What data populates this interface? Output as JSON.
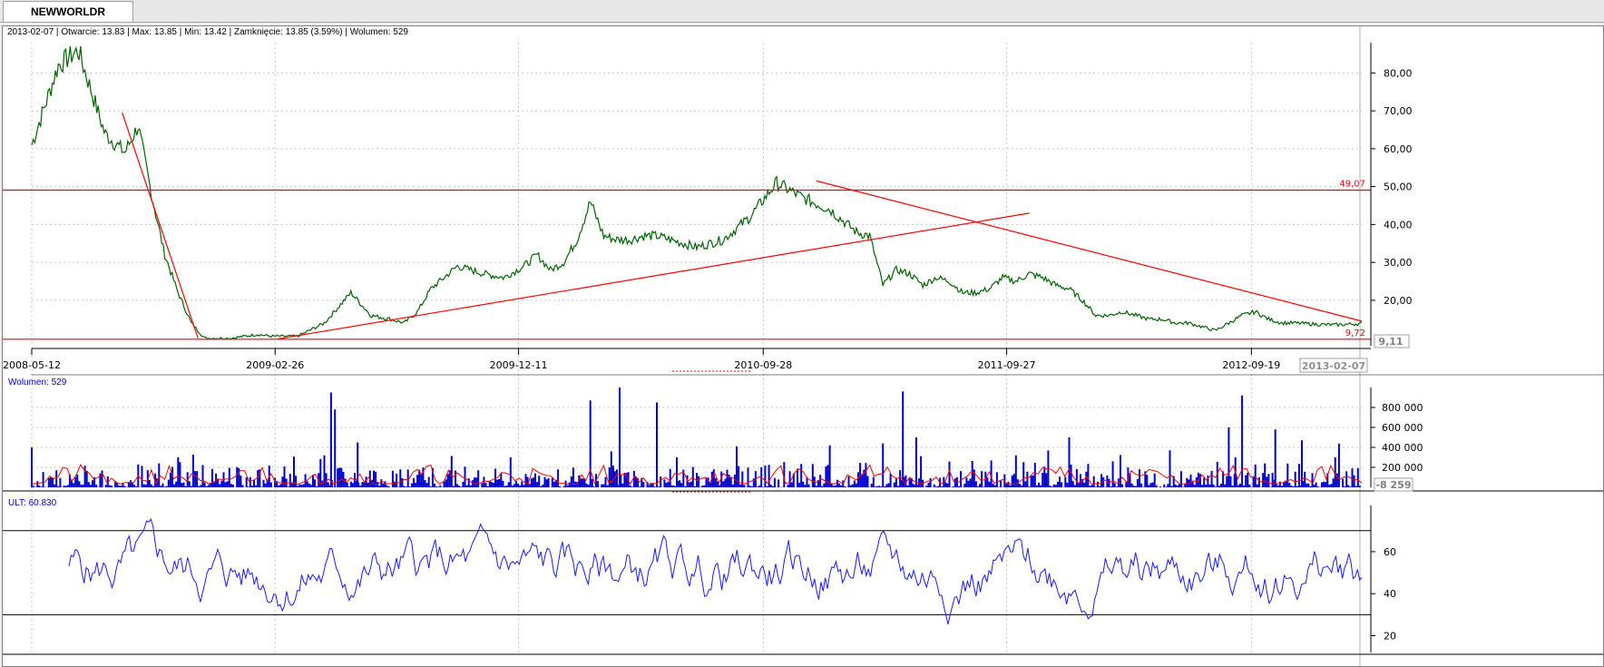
{
  "tab": {
    "label": "NEWWORLDR"
  },
  "info": {
    "date": "2013-02-07",
    "open": "Otwarcie: 13.83",
    "max": "Max: 13.85",
    "min": "Min: 13.42",
    "close": "Zamknięcie: 13.85 (3.59%)",
    "volume": "Wolumen: 529"
  },
  "colors": {
    "price": "#006400",
    "trend": "#ff0000",
    "volume": "#0000cc",
    "volume_ma": "#ff0000",
    "ult": "#1a1aff",
    "grid": "#c8c8c8",
    "axis": "#000000"
  },
  "chart_data": [
    {
      "type": "line",
      "name": "price",
      "x_ticks": [
        "2008-05-12",
        "2009-02-26",
        "2009-12-11",
        "2010-09-28",
        "2011-09-27",
        "2012-09-19"
      ],
      "y_ticks": [
        "80,00",
        "70,00",
        "60,00",
        "50,00",
        "40,00",
        "30,00",
        "20,00"
      ],
      "ylim": [
        8,
        88
      ],
      "last_date": "2013-02-07",
      "x": [
        0,
        0.02,
        0.035,
        0.045,
        0.055,
        0.07,
        0.08,
        0.09,
        0.1,
        0.11,
        0.12,
        0.13,
        0.14,
        0.15,
        0.16,
        0.17,
        0.18,
        0.2,
        0.22,
        0.24,
        0.255,
        0.27,
        0.28,
        0.29,
        0.3,
        0.31,
        0.32,
        0.33,
        0.34,
        0.355,
        0.37,
        0.38,
        0.39,
        0.4,
        0.41,
        0.42,
        0.43,
        0.44,
        0.45,
        0.46,
        0.47,
        0.48,
        0.49,
        0.5,
        0.52,
        0.54,
        0.56,
        0.58,
        0.6,
        0.61,
        0.62,
        0.63,
        0.64,
        0.65,
        0.66,
        0.67,
        0.68,
        0.69,
        0.7,
        0.71,
        0.72,
        0.73,
        0.74,
        0.75,
        0.76,
        0.77,
        0.78,
        0.79,
        0.8,
        0.81,
        0.82,
        0.83,
        0.84,
        0.85,
        0.86,
        0.87,
        0.88,
        0.89,
        0.9,
        0.91,
        0.92,
        0.93,
        0.94,
        0.95,
        0.96,
        0.97,
        0.98,
        1
      ],
      "y": [
        61,
        82,
        86,
        75,
        64,
        59,
        66,
        48,
        32,
        22,
        14,
        10,
        10,
        10,
        10.5,
        11,
        10.5,
        10.5,
        14,
        22,
        16,
        15,
        14,
        17,
        23,
        26,
        29,
        28,
        27,
        26,
        29,
        32,
        28,
        30,
        36,
        46,
        37,
        36,
        36,
        37,
        37,
        36,
        35,
        34,
        36,
        42,
        51,
        47,
        44,
        41,
        38,
        37,
        24,
        28,
        27,
        24,
        26,
        25,
        22,
        22,
        23,
        26,
        25,
        27,
        26,
        24,
        23,
        20,
        16,
        16,
        17,
        16,
        15,
        15,
        14,
        14,
        13,
        12,
        14,
        16,
        17,
        15,
        14,
        14,
        13.8,
        13.6,
        13.5,
        13.85
      ],
      "h_lines": [
        {
          "value": 49.07,
          "label": "49,07"
        },
        {
          "value": 9.72,
          "label": "9,72"
        }
      ],
      "trendlines": [
        {
          "from": [
            0.068,
            69.5
          ],
          "to": [
            0.125,
            10
          ]
        },
        {
          "from": [
            0.185,
            9.8
          ],
          "to": [
            0.75,
            43
          ]
        },
        {
          "from": [
            0.59,
            51.5
          ],
          "to": [
            1.0,
            14.5
          ]
        }
      ],
      "current_value": "9,11"
    },
    {
      "type": "bar",
      "name": "volume",
      "title": "Wolumen: 529",
      "y_ticks": [
        "800 000",
        "600 000",
        "400 000",
        "200 000"
      ],
      "ylim": [
        0,
        1000000
      ],
      "current_value": "-8 259",
      "spikes": [
        {
          "x": 0.0,
          "v": 400000
        },
        {
          "x": 0.11,
          "v": 300000
        },
        {
          "x": 0.22,
          "v": 320000
        },
        {
          "x": 0.225,
          "v": 950000
        },
        {
          "x": 0.228,
          "v": 780000
        },
        {
          "x": 0.245,
          "v": 450000
        },
        {
          "x": 0.36,
          "v": 300000
        },
        {
          "x": 0.42,
          "v": 870000
        },
        {
          "x": 0.442,
          "v": 1000000
        },
        {
          "x": 0.47,
          "v": 850000
        },
        {
          "x": 0.485,
          "v": 300000
        },
        {
          "x": 0.53,
          "v": 410000
        },
        {
          "x": 0.6,
          "v": 420000
        },
        {
          "x": 0.64,
          "v": 440000
        },
        {
          "x": 0.655,
          "v": 960000
        },
        {
          "x": 0.665,
          "v": 500000
        },
        {
          "x": 0.74,
          "v": 320000
        },
        {
          "x": 0.78,
          "v": 500000
        },
        {
          "x": 0.9,
          "v": 480000
        },
        {
          "x": 0.905,
          "v": 280000
        },
        {
          "x": 0.905,
          "v": 300000
        },
        {
          "x": 0.9,
          "v": 600000
        },
        {
          "x": 0.91,
          "v": 920000
        },
        {
          "x": 0.935,
          "v": 580000
        },
        {
          "x": 0.955,
          "v": 470000
        },
        {
          "x": 0.98,
          "v": 300000
        }
      ]
    },
    {
      "type": "line",
      "name": "ULT",
      "title": "ULT: 60.830",
      "y_ticks": [
        "60",
        "40",
        "20"
      ],
      "ylim": [
        12,
        82
      ],
      "levels": [
        70,
        30
      ]
    }
  ]
}
